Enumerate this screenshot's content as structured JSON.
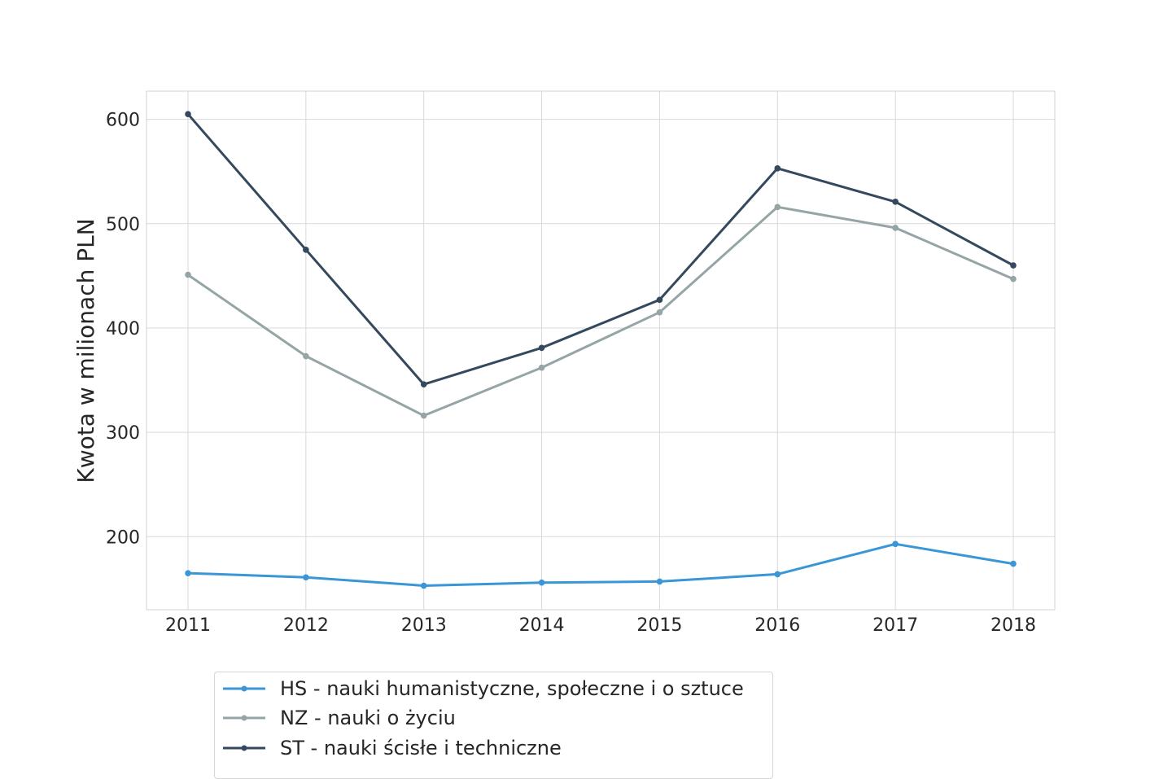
{
  "chart_data": {
    "type": "line",
    "title": "",
    "xlabel": "",
    "ylabel": "Kwota w milionach PLN",
    "x": [
      "2011",
      "2012",
      "2013",
      "2014",
      "2015",
      "2016",
      "2017",
      "2018"
    ],
    "ylim": [
      130,
      627
    ],
    "yticks": [
      "200",
      "300",
      "400",
      "500",
      "600"
    ],
    "grid": true,
    "legend_position": "bottom-left",
    "series": [
      {
        "name": "HS - nauki humanistyczne, społeczne i o sztuce",
        "color": "#3a96d6",
        "values": [
          165,
          161,
          153,
          156,
          157,
          164,
          193,
          174
        ]
      },
      {
        "name": "NZ - nauki o życiu",
        "color": "#95a5a6",
        "values": [
          451,
          373,
          316,
          362,
          415,
          516,
          496,
          447
        ]
      },
      {
        "name": "ST - nauki ścisłe i techniczne",
        "color": "#34495e",
        "values": [
          605,
          475,
          346,
          381,
          427,
          553,
          521,
          460
        ]
      }
    ]
  }
}
